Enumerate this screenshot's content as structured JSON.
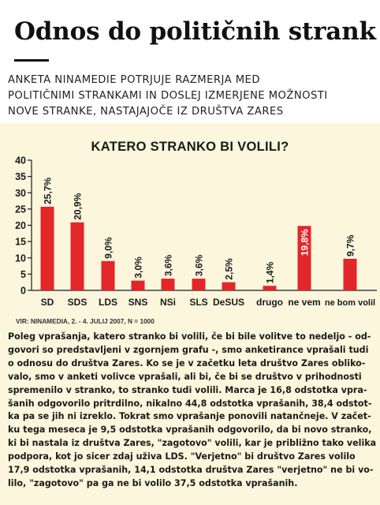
{
  "article": {
    "headline": "Odnos do političnih strank",
    "subhead_lines": [
      "ANKETA NINAMEDIE POTRJUJE RAZMERJA MED",
      "POLITIČNIMI STRANKAMI IN DOSLEJ IZMERJENE MOŽNOSTI",
      "NOVE STRANKE, NASTAJAJOČE IZ DRUŠTVA ZARES"
    ],
    "source": "VIR: NINAMEDIA, 2. - 4. JULIJ 2007, N = 1000",
    "body_lines": [
      "Poleg vprašanja, katero stranko bi volili, če bi bile volitve to nedeljo - od-",
      "govori so predstavljeni v zgornjem grafu -, smo anketirance vprašali tudi",
      "o odnosu do društva Zares. Ko se je v začetku leta društvo Zares obliko-",
      "valo, smo v anketi volivce vprašali, ali bi, če bi se društvo v prihodnosti",
      "spremenilo v stranko, to stranko tudi volili. Marca je 16,8 odstotka vpra-",
      "šanih odgovorilo pritrdilno, nikalno 44,8 odstotka vprašanih, 38,4 odstot-",
      "ka pa se jih ni izreklo. Tokrat smo vprašanje ponovili natančneje. V začet-",
      "ku tega meseca je 9,5 odstotka vprašanih odgovorilo, da bi novo stranko,",
      "ki bi nastala iz društva Zares, \"zagotovo\" volili, kar je približno tako velika",
      "podpora, kot jo sicer zdaj uživa LDS. \"Verjetno\" bi društvo Zares volilo",
      "17,9 odstotka vprašanih, 14,1 odstotka društva Zares \"verjetno\" ne bi vo-",
      "lilo, \"zagotovo\" pa ga ne bi volilo 37,5 odstotka vprašanih."
    ]
  },
  "chart_data": {
    "type": "bar",
    "title": "KATERO STRANKO BI VOLILI?",
    "xlabel": "",
    "ylabel": "",
    "ylim": [
      0,
      40
    ],
    "yticks": [
      0,
      5,
      10,
      15,
      20,
      25,
      30,
      35,
      40
    ],
    "grid": false,
    "categories": [
      "SD",
      "SDS",
      "LDS",
      "SNS",
      "NSi",
      "SLS",
      "DeSUS",
      "drugo",
      "ne vem",
      "ne bom volil"
    ],
    "values": [
      25.7,
      20.9,
      9.0,
      3.0,
      3.6,
      3.6,
      2.5,
      1.4,
      19.8,
      9.7
    ],
    "data_labels": [
      "25,7%",
      "20,9%",
      "9,0%",
      "3,0%",
      "3,6%",
      "3,6%",
      "2,5%",
      "1,4%",
      "19,8%",
      "9,7%"
    ],
    "bar_color": "#e3262a",
    "inside_label_color": "#ffffff",
    "outside_label_color": "#1a1a1a"
  }
}
